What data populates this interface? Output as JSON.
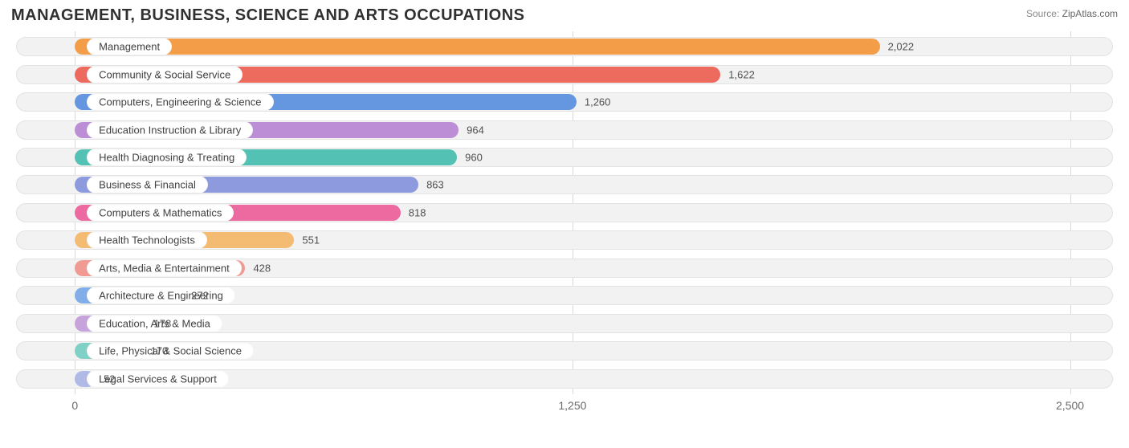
{
  "header": {
    "title": "MANAGEMENT, BUSINESS, SCIENCE AND ARTS OCCUPATIONS",
    "source_label": "Source:",
    "source_site": "ZipAtlas.com"
  },
  "chart": {
    "type": "bar-horizontal",
    "background_color": "#ffffff",
    "track_color": "#f2f2f2",
    "track_border_color": "#e2e2e2",
    "grid_color": "#d9d9d9",
    "text_color": "#404040",
    "title_fontsize": 20,
    "label_fontsize": 13,
    "tick_fontsize": 14,
    "x_axis": {
      "min": -160,
      "max": 2620,
      "ticks": [
        {
          "value": 0,
          "label": "0"
        },
        {
          "value": 1250,
          "label": "1,250"
        },
        {
          "value": 2500,
          "label": "2,500"
        }
      ]
    },
    "bar_origin": 0,
    "label_anchor": 30,
    "colors": [
      "#f39d49",
      "#ec6a5e",
      "#6596e0",
      "#bb8ed6",
      "#54c1b5",
      "#8e9ade",
      "#ec6aa0",
      "#f4bb72",
      "#f09a93",
      "#81aee8",
      "#c6a4db",
      "#7fd1c7",
      "#b1bae6"
    ],
    "rows": [
      {
        "label": "Management",
        "value": 2022,
        "display": "2,022"
      },
      {
        "label": "Community & Social Service",
        "value": 1622,
        "display": "1,622"
      },
      {
        "label": "Computers, Engineering & Science",
        "value": 1260,
        "display": "1,260"
      },
      {
        "label": "Education Instruction & Library",
        "value": 964,
        "display": "964"
      },
      {
        "label": "Health Diagnosing & Treating",
        "value": 960,
        "display": "960"
      },
      {
        "label": "Business & Financial",
        "value": 863,
        "display": "863"
      },
      {
        "label": "Computers & Mathematics",
        "value": 818,
        "display": "818"
      },
      {
        "label": "Health Technologists",
        "value": 551,
        "display": "551"
      },
      {
        "label": "Arts, Media & Entertainment",
        "value": 428,
        "display": "428"
      },
      {
        "label": "Architecture & Engineering",
        "value": 272,
        "display": "272"
      },
      {
        "label": "Education, Arts & Media",
        "value": 178,
        "display": "178"
      },
      {
        "label": "Life, Physical & Social Science",
        "value": 170,
        "display": "170"
      },
      {
        "label": "Legal Services & Support",
        "value": 52,
        "display": "52"
      }
    ]
  }
}
